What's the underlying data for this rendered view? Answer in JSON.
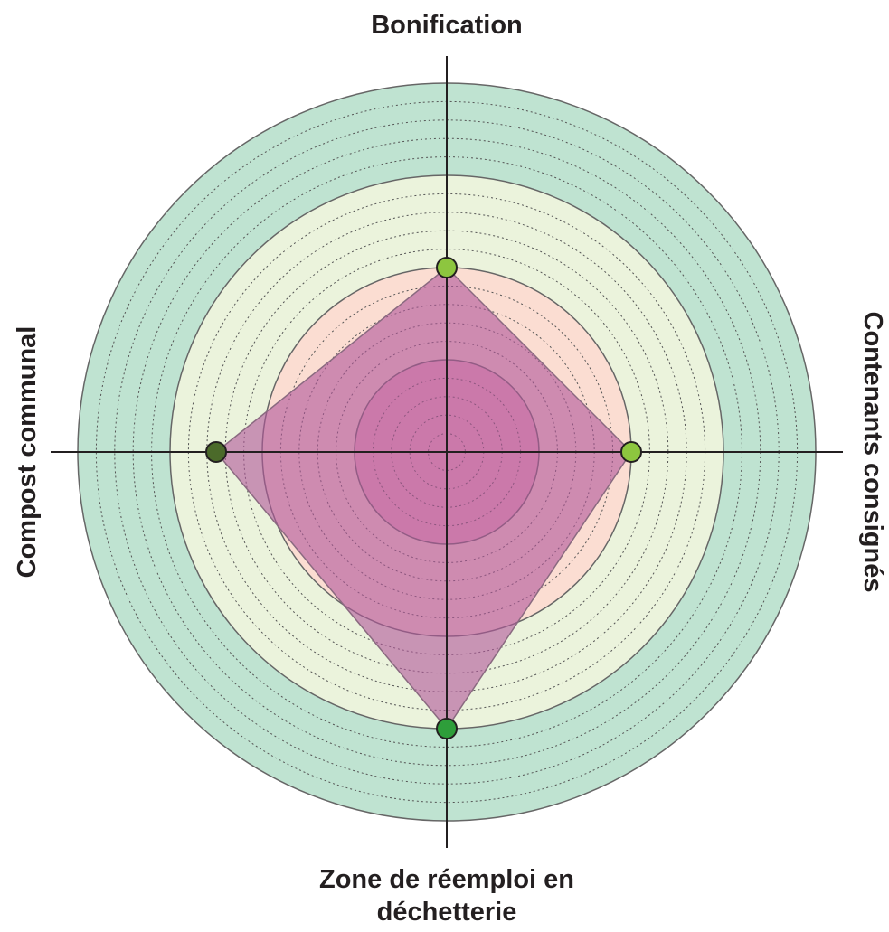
{
  "chart_data": {
    "type": "radar",
    "categories": [
      "Bonification",
      "Contenants consignés",
      "Zone de réemploi en déchetterie",
      "Compost communal"
    ],
    "values": [
      10,
      10,
      15,
      12.5
    ],
    "point_colors": [
      "#8dc63f",
      "#8dc63f",
      "#2e9e3a",
      "#4b6a2a"
    ],
    "fill_color": "#b0559a",
    "rlim": [
      0,
      20
    ],
    "rticks": [
      1,
      2,
      3,
      4,
      6,
      7,
      8,
      9,
      11,
      12,
      13,
      14,
      16,
      17,
      18,
      19
    ],
    "bands": [
      {
        "from": 15,
        "to": 20,
        "color": "#bfe3d1"
      },
      {
        "from": 10,
        "to": 15,
        "color": "#ebf3dc"
      },
      {
        "from": 5,
        "to": 10,
        "color": "#fbddd2"
      },
      {
        "from": 0,
        "to": 5,
        "color": "#f2aec3"
      }
    ]
  }
}
